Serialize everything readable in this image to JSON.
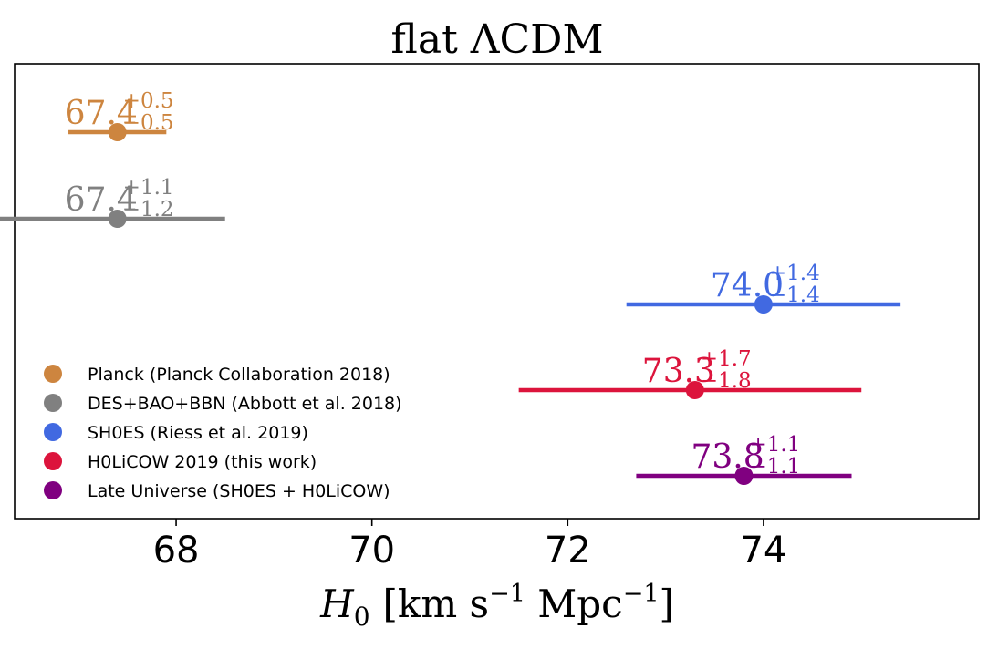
{
  "chart_data": {
    "type": "errorbar",
    "title": "flat ΛCDM",
    "xlabel": {
      "symbol": "H",
      "subscript": "0",
      "units_parts": [
        "[km s",
        "−1",
        " Mpc",
        "−1",
        "]"
      ]
    },
    "xlim": [
      66.35,
      76.2
    ],
    "xticks": [
      68,
      70,
      72,
      74
    ],
    "grid": false,
    "legend_position": "lower-left",
    "series": [
      {
        "name": "Planck (Planck Collaboration 2018)",
        "value": 67.4,
        "plus": 0.5,
        "minus": 0.5,
        "value_label": "67.4",
        "plus_label": "+0.5",
        "minus_label": "−0.5",
        "color": "#cd853f"
      },
      {
        "name": "DES+BAO+BBN (Abbott et al. 2018)",
        "value": 67.4,
        "plus": 1.1,
        "minus": 1.2,
        "value_label": "67.4",
        "plus_label": "+1.1",
        "minus_label": "−1.2",
        "color": "#808080"
      },
      {
        "name": "SH0ES (Riess et al. 2019)",
        "value": 74.0,
        "plus": 1.4,
        "minus": 1.4,
        "value_label": "74.0",
        "plus_label": "+1.4",
        "minus_label": "−1.4",
        "color": "#4169e1"
      },
      {
        "name": "H0LiCOW 2019 (this work)",
        "value": 73.3,
        "plus": 1.7,
        "minus": 1.8,
        "value_label": "73.3",
        "plus_label": "+1.7",
        "minus_label": "−1.8",
        "color": "#dc143c"
      },
      {
        "name": "Late Universe (SH0ES + H0LiCOW)",
        "value": 73.8,
        "plus": 1.1,
        "minus": 1.1,
        "value_label": "73.8",
        "plus_label": "+1.1",
        "minus_label": "−1.1",
        "color": "#800080"
      }
    ]
  }
}
